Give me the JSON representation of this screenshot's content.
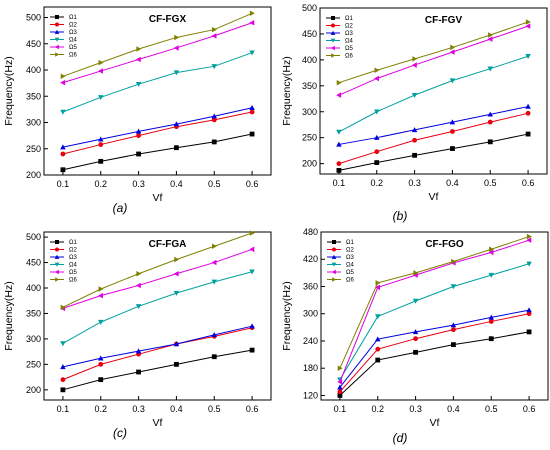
{
  "colors": {
    "series": [
      "#000000",
      "#e8000f",
      "#0000e0",
      "#00a0a0",
      "#e000e0",
      "#808000"
    ],
    "frame": "#000000"
  },
  "markers": [
    "square",
    "circle",
    "triangle-up",
    "triangle-down",
    "triangle-left",
    "triangle-right"
  ],
  "chart_data": [
    {
      "type": "line",
      "title": "CF-FGX",
      "caption": "(a)",
      "xlabel": "Vf",
      "ylabel": "Frequency(Hz)",
      "x": [
        0.1,
        0.2,
        0.3,
        0.4,
        0.5,
        0.6
      ],
      "xticks": [
        "0.1",
        "0.2",
        "0.3",
        "0.4",
        "0.5",
        "0.6"
      ],
      "xlim": [
        0.05,
        0.65
      ],
      "ylim": [
        200,
        520
      ],
      "yticks": [
        "200",
        "250",
        "300",
        "350",
        "400",
        "450",
        "500"
      ],
      "grid": false,
      "legend": "top-left",
      "series": [
        {
          "name": "Ω1",
          "values": [
            210,
            226,
            240,
            252,
            263,
            278
          ]
        },
        {
          "name": "Ω2",
          "values": [
            240,
            258,
            275,
            292,
            305,
            320
          ]
        },
        {
          "name": "Ω3",
          "values": [
            253,
            268,
            283,
            297,
            312,
            328
          ]
        },
        {
          "name": "Ω4",
          "values": [
            320,
            348,
            373,
            395,
            407,
            433
          ]
        },
        {
          "name": "Ω5",
          "values": [
            376,
            398,
            420,
            442,
            465,
            490
          ]
        },
        {
          "name": "Ω6",
          "values": [
            388,
            414,
            440,
            462,
            477,
            508
          ]
        }
      ]
    },
    {
      "type": "line",
      "title": "CF-FGV",
      "caption": "(b)",
      "xlabel": "Vf",
      "ylabel": "Frequency(Hz)",
      "x": [
        0.1,
        0.2,
        0.3,
        0.4,
        0.5,
        0.6
      ],
      "xticks": [
        "0.1",
        "0.2",
        "0.3",
        "0.4",
        "0.5",
        "0.6"
      ],
      "xlim": [
        0.05,
        0.65
      ],
      "ylim": [
        180,
        500
      ],
      "yticks": [
        "200",
        "250",
        "300",
        "350",
        "400",
        "450",
        "500"
      ],
      "grid": false,
      "legend": "top-left",
      "series": [
        {
          "name": "Ω1",
          "values": [
            187,
            202,
            216,
            229,
            242,
            257
          ]
        },
        {
          "name": "Ω2",
          "values": [
            200,
            223,
            245,
            262,
            280,
            297
          ]
        },
        {
          "name": "Ω3",
          "values": [
            237,
            250,
            265,
            280,
            295,
            310
          ]
        },
        {
          "name": "Ω4",
          "values": [
            261,
            300,
            332,
            360,
            383,
            407
          ]
        },
        {
          "name": "Ω5",
          "values": [
            332,
            364,
            390,
            415,
            440,
            465
          ]
        },
        {
          "name": "Ω6",
          "values": [
            356,
            380,
            402,
            424,
            448,
            473
          ]
        }
      ]
    },
    {
      "type": "line",
      "title": "CF-FGA",
      "caption": "(c)",
      "xlabel": "Vf",
      "ylabel": "Frequency(Hz)",
      "x": [
        0.1,
        0.2,
        0.3,
        0.4,
        0.5,
        0.6
      ],
      "xticks": [
        "0.1",
        "0.2",
        "0.3",
        "0.4",
        "0.5",
        "0.6"
      ],
      "xlim": [
        0.05,
        0.65
      ],
      "ylim": [
        180,
        510
      ],
      "yticks": [
        "200",
        "250",
        "300",
        "350",
        "400",
        "450",
        "500"
      ],
      "grid": false,
      "legend": "top-left",
      "series": [
        {
          "name": "Ω1",
          "values": [
            200,
            220,
            235,
            250,
            265,
            278
          ]
        },
        {
          "name": "Ω2",
          "values": [
            220,
            250,
            270,
            290,
            305,
            322
          ]
        },
        {
          "name": "Ω3",
          "values": [
            245,
            262,
            276,
            290,
            308,
            325
          ]
        },
        {
          "name": "Ω4",
          "values": [
            291,
            333,
            364,
            390,
            412,
            432
          ]
        },
        {
          "name": "Ω5",
          "values": [
            360,
            385,
            405,
            428,
            450,
            476
          ]
        },
        {
          "name": "Ω6",
          "values": [
            362,
            398,
            428,
            456,
            482,
            508
          ]
        }
      ]
    },
    {
      "type": "line",
      "title": "CF-FGO",
      "caption": "(d)",
      "xlabel": "Vf",
      "ylabel": "Frequency(Hz)",
      "x": [
        0.1,
        0.2,
        0.3,
        0.4,
        0.5,
        0.6
      ],
      "xticks": [
        "0.1",
        "0.2",
        "0.3",
        "0.4",
        "0.5",
        "0.6"
      ],
      "xlim": [
        0.05,
        0.65
      ],
      "ylim": [
        110,
        480
      ],
      "yticks": [
        "120",
        "180",
        "240",
        "300",
        "360",
        "420",
        "480"
      ],
      "grid": false,
      "legend": "top-left",
      "series": [
        {
          "name": "Ω1",
          "values": [
            120,
            198,
            215,
            232,
            245,
            260
          ]
        },
        {
          "name": "Ω2",
          "values": [
            128,
            222,
            245,
            265,
            283,
            300
          ]
        },
        {
          "name": "Ω3",
          "values": [
            138,
            244,
            260,
            275,
            292,
            308
          ]
        },
        {
          "name": "Ω4",
          "values": [
            155,
            294,
            328,
            360,
            385,
            410
          ]
        },
        {
          "name": "Ω5",
          "values": [
            150,
            358,
            385,
            412,
            435,
            462
          ]
        },
        {
          "name": "Ω6",
          "values": [
            180,
            368,
            390,
            415,
            442,
            470
          ]
        }
      ]
    }
  ]
}
